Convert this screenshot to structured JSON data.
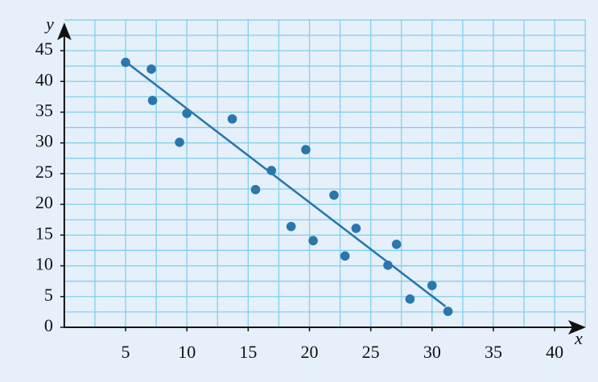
{
  "chart_data": {
    "type": "scatter",
    "x_label": "x",
    "y_label": "y",
    "x": [
      5.0,
      7.1,
      7.2,
      9.4,
      10.0,
      13.7,
      15.6,
      16.9,
      18.5,
      19.7,
      20.3,
      22.0,
      22.9,
      23.8,
      26.4,
      27.1,
      28.2,
      30.0,
      31.3
    ],
    "values": [
      43.1,
      42.0,
      36.9,
      30.1,
      34.8,
      33.9,
      22.4,
      25.5,
      16.4,
      28.9,
      14.1,
      21.5,
      11.6,
      16.1,
      10.1,
      13.5,
      4.6,
      6.8,
      2.6
    ],
    "color": "#2a77ad",
    "trendline": {
      "x": [
        5.0,
        31.1
      ],
      "y": [
        43.2,
        3.4
      ],
      "color": "#2a77ad"
    },
    "xlim": [
      0,
      42.5
    ],
    "ylim": [
      0,
      50
    ],
    "xticks": [
      5,
      10,
      15,
      20,
      25,
      30,
      35,
      40
    ],
    "yticks": [
      0,
      5,
      10,
      15,
      20,
      25,
      30,
      35,
      40,
      45
    ],
    "xgrid": [
      2.5,
      5,
      7.5,
      10,
      12.5,
      15,
      17.5,
      20,
      22.5,
      25,
      27.5,
      30,
      32.5,
      35,
      37.5,
      40,
      42.5
    ],
    "ygrid": [
      2.5,
      5,
      7.5,
      10,
      12.5,
      15,
      17.5,
      20,
      22.5,
      25,
      27.5,
      30,
      32.5,
      35,
      37.5,
      40,
      42.5,
      45,
      47.5,
      50
    ],
    "grid": true,
    "grid_color": "#7fd0ec"
  }
}
